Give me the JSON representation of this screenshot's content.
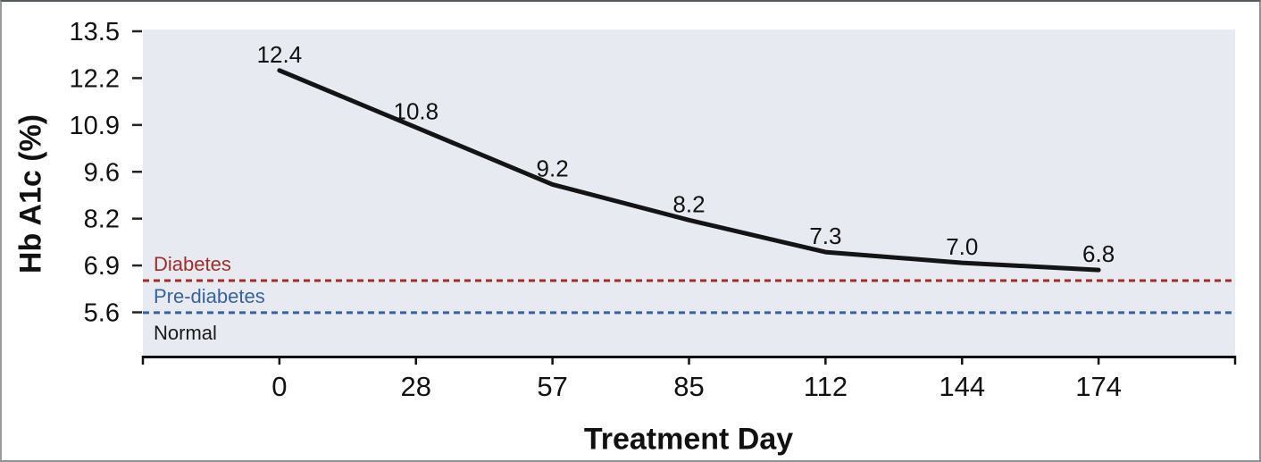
{
  "chart_data": {
    "type": "line",
    "xlabel": "Treatment Day",
    "ylabel": "Hb A1c (%)",
    "x": [
      0,
      28,
      57,
      85,
      112,
      144,
      174
    ],
    "x_tick_labels": [
      "0",
      "28",
      "57",
      "85",
      "112",
      "144",
      "174"
    ],
    "values": [
      12.4,
      10.8,
      9.2,
      8.2,
      7.3,
      7.0,
      6.8
    ],
    "point_labels": [
      "12.4",
      "10.8",
      "9.2",
      "8.2",
      "7.3",
      "7.0",
      "6.8"
    ],
    "y_ticks": [
      "13.5",
      "12.2",
      "10.9",
      "9.6",
      "8.2",
      "6.9",
      "5.6"
    ],
    "y_axis": {
      "top_value": 13.5,
      "bottom_value": 5.61
    },
    "reference_lines": [
      {
        "label": "Diabetes",
        "value": 6.5,
        "color": "#a02e27",
        "style": "dashed"
      },
      {
        "label": "Pre-diabetes",
        "value": 5.6,
        "color": "#36639e",
        "style": "dashed"
      }
    ],
    "normal_label": {
      "text": "Normal",
      "color": "#1a1a1a"
    },
    "line_color": "#141414",
    "plot_bg": "#e8eaf1",
    "grid": false,
    "legend": "none",
    "markers": false
  }
}
